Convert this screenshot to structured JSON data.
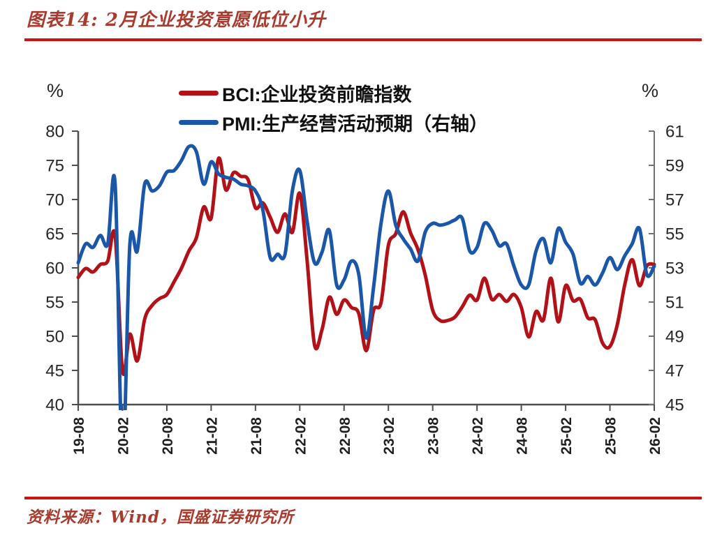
{
  "header": {
    "title": "图表14: 2月企业投资意愿低位小升"
  },
  "legend": {
    "items": [
      {
        "label": "BCI:企业投资前瞻指数",
        "color": "#B31118"
      },
      {
        "label": "PMI:生产经营活动预期（右轴）",
        "color": "#1B57A8"
      }
    ]
  },
  "footer": {
    "source": "资料来源：Wind，国盛证券研究所"
  },
  "colors": {
    "accent_rule": "#CA1412",
    "caption_text": "#A93A2E",
    "axis_text": "#262626",
    "x_label_text": "#1F1F1F",
    "axis_line": "#4D4D4D",
    "right_axis_line": "#707070",
    "bci_line": "#B31118",
    "pmi_line": "#1B57A8"
  },
  "chart_data": {
    "type": "line",
    "title": "2月企业投资意愿低位小升",
    "frequency": "monthly",
    "x_start": "2019-08",
    "x_end": "2026-02",
    "x_tick_labels": [
      "19-08",
      "20-02",
      "20-08",
      "21-02",
      "21-08",
      "22-02",
      "22-08",
      "23-02",
      "23-08",
      "24-02",
      "24-08",
      "25-02",
      "25-08",
      "26-02"
    ],
    "left_axis": {
      "unit": "%",
      "min": 40,
      "max": 80,
      "ticks": [
        80,
        75,
        70,
        65,
        60,
        55,
        50,
        45,
        40
      ]
    },
    "right_axis": {
      "unit": "%",
      "min": 45,
      "max": 61,
      "ticks": [
        61,
        59,
        57,
        55,
        53,
        51,
        49,
        47,
        45
      ]
    },
    "grid": false,
    "legend_position": "top-center",
    "series": [
      {
        "name": "BCI:企业投资前瞻指数",
        "axis": "left",
        "color": "#B31118",
        "smooth": true,
        "values": [
          58.6,
          59.9,
          59.4,
          60.5,
          61.0,
          64.7,
          44.9,
          50.3,
          46.4,
          52.5,
          54.5,
          55.5,
          56.1,
          58.0,
          60.0,
          62.5,
          64.4,
          68.9,
          67.3,
          76.0,
          71.4,
          73.9,
          73.4,
          72.9,
          68.8,
          69.5,
          67.4,
          65.2,
          67.9,
          65.2,
          70.9,
          61.0,
          48.7,
          50.9,
          55.7,
          53.2,
          55.3,
          54.2,
          53.3,
          47.9,
          53.8,
          54.9,
          63.3,
          65.0,
          68.2,
          65.1,
          62.7,
          58.9,
          53.8,
          52.3,
          52.3,
          52.8,
          54.3,
          56.0,
          55.3,
          58.5,
          55.4,
          56.1,
          55.1,
          56.1,
          54.2,
          49.9,
          53.6,
          52.4,
          58.5,
          52.1,
          57.4,
          55.2,
          55.4,
          52.7,
          52.4,
          49.0,
          48.5,
          51.7,
          57.5,
          61.2,
          57.4,
          60.3,
          60.5
        ]
      },
      {
        "name": "PMI:生产经营活动预期（右轴）",
        "axis": "right",
        "color": "#1B57A8",
        "smooth": true,
        "values": [
          53.3,
          54.4,
          54.2,
          54.9,
          54.4,
          57.9,
          41.8,
          54.4,
          54.0,
          57.9,
          57.5,
          57.8,
          58.6,
          58.7,
          59.3,
          60.1,
          59.8,
          57.9,
          59.2,
          58.5,
          58.3,
          58.2,
          57.9,
          57.8,
          57.5,
          56.4,
          53.6,
          53.8,
          53.8,
          57.5,
          58.7,
          55.7,
          53.3,
          53.9,
          55.2,
          52.0,
          52.3,
          53.4,
          52.6,
          48.9,
          51.9,
          55.6,
          57.5,
          55.5,
          54.7,
          54.1,
          53.4,
          55.1,
          55.6,
          55.5,
          55.6,
          55.8,
          55.9,
          54.0,
          54.2,
          55.6,
          55.2,
          54.3,
          54.4,
          53.1,
          52.0,
          52.0,
          54.0,
          54.7,
          53.3,
          55.3,
          54.5,
          53.8,
          52.1,
          52.5,
          52.0,
          52.7,
          53.6,
          52.9,
          53.7,
          54.4,
          55.3,
          52.6,
          53.1
        ]
      }
    ]
  }
}
